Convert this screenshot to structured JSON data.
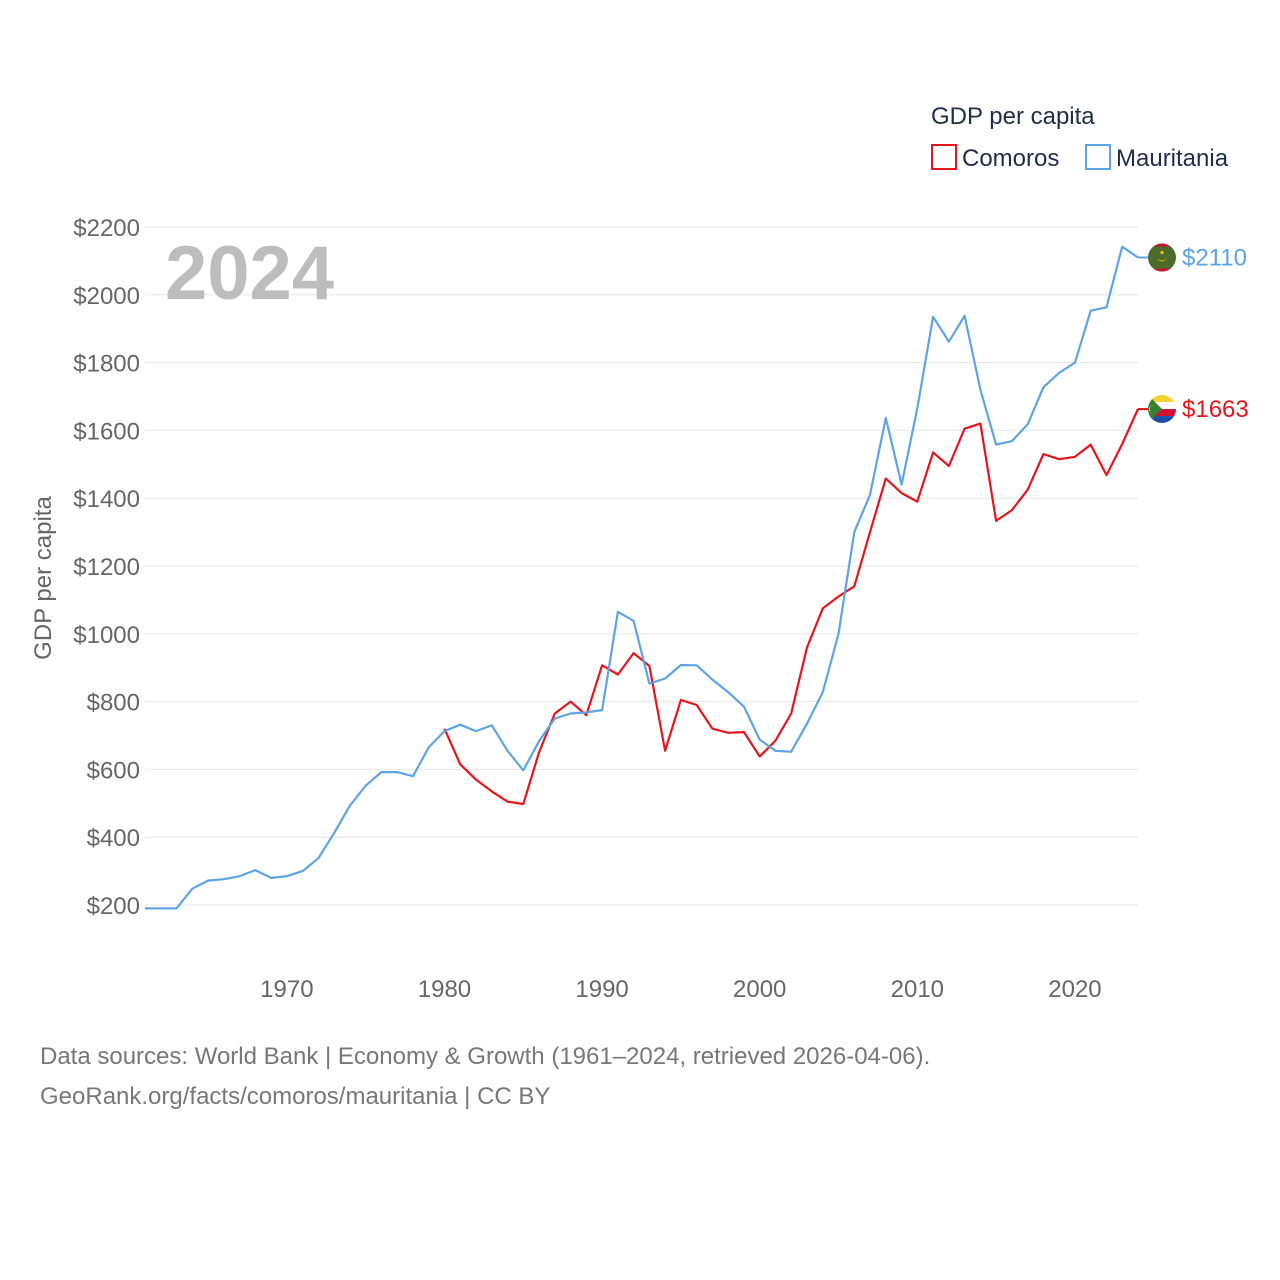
{
  "chart_data": {
    "type": "line",
    "title": "GDP per capita",
    "year_label": "2024",
    "ylabel": "GDP per capita",
    "xlabel": "",
    "ylim": [
      100,
      2250
    ],
    "xlim": [
      1961,
      2024
    ],
    "yticks": [
      200,
      400,
      600,
      800,
      1000,
      1200,
      1400,
      1600,
      1800,
      2000,
      2200
    ],
    "ytick_labels": [
      "$200",
      "$400",
      "$600",
      "$800",
      "$1000",
      "$1200",
      "$1400",
      "$1600",
      "$1800",
      "$2000",
      "$2200"
    ],
    "xticks": [
      1970,
      1980,
      1990,
      2000,
      2010,
      2020
    ],
    "xtick_labels": [
      "1970",
      "1980",
      "1990",
      "2000",
      "2010",
      "2020"
    ],
    "legend": {
      "title": "GDP per capita",
      "placement": "top-right"
    },
    "series": [
      {
        "name": "Comoros",
        "color": "#e8141b",
        "end_label": "$1663",
        "flag_icon": "comoros-flag-icon",
        "x": [
          1980,
          1981,
          1982,
          1983,
          1984,
          1985,
          1986,
          1987,
          1988,
          1989,
          1990,
          1991,
          1992,
          1993,
          1994,
          1995,
          1996,
          1997,
          1998,
          1999,
          2000,
          2001,
          2002,
          2003,
          2004,
          2005,
          2006,
          2007,
          2008,
          2009,
          2010,
          2011,
          2012,
          2013,
          2014,
          2015,
          2016,
          2017,
          2018,
          2019,
          2020,
          2021,
          2022,
          2023,
          2024
        ],
        "values": [
          720,
          615,
          570,
          535,
          505,
          498,
          650,
          765,
          800,
          760,
          907,
          880,
          943,
          905,
          655,
          805,
          790,
          720,
          708,
          710,
          638,
          685,
          765,
          960,
          1075,
          1110,
          1140,
          1300,
          1458,
          1415,
          1390,
          1535,
          1495,
          1605,
          1620,
          1333,
          1365,
          1425,
          1530,
          1515,
          1522,
          1558,
          1468,
          1560,
          1663
        ]
      },
      {
        "name": "Mauritania",
        "color": "#5da4e6",
        "end_label": "$2110",
        "flag_icon": "mauritania-flag-icon",
        "x": [
          1961,
          1962,
          1963,
          1964,
          1965,
          1966,
          1967,
          1968,
          1969,
          1970,
          1971,
          1972,
          1973,
          1974,
          1975,
          1976,
          1977,
          1978,
          1979,
          1980,
          1981,
          1982,
          1983,
          1984,
          1985,
          1986,
          1987,
          1988,
          1989,
          1990,
          1991,
          1992,
          1993,
          1994,
          1995,
          1996,
          1997,
          1998,
          1999,
          2000,
          2001,
          2002,
          2003,
          2004,
          2005,
          2006,
          2007,
          2008,
          2009,
          2010,
          2011,
          2012,
          2013,
          2014,
          2015,
          2016,
          2017,
          2018,
          2019,
          2020,
          2021,
          2022,
          2023,
          2024
        ],
        "values": [
          190,
          190,
          190,
          248,
          272,
          276,
          285,
          303,
          280,
          285,
          300,
          338,
          412,
          493,
          552,
          592,
          592,
          580,
          665,
          713,
          732,
          713,
          730,
          655,
          597,
          683,
          750,
          765,
          768,
          775,
          1065,
          1038,
          853,
          868,
          908,
          907,
          865,
          828,
          785,
          688,
          655,
          652,
          735,
          828,
          1000,
          1300,
          1410,
          1637,
          1440,
          1665,
          1935,
          1862,
          1938,
          1720,
          1558,
          1568,
          1618,
          1727,
          1770,
          1800,
          1953,
          1963,
          2142,
          2110
        ]
      }
    ]
  },
  "footer": {
    "line1": "Data sources: World Bank | Economy & Growth (1961–2024, retrieved 2026-04-06).",
    "line2": "GeoRank.org/facts/comoros/mauritania | CC BY"
  }
}
